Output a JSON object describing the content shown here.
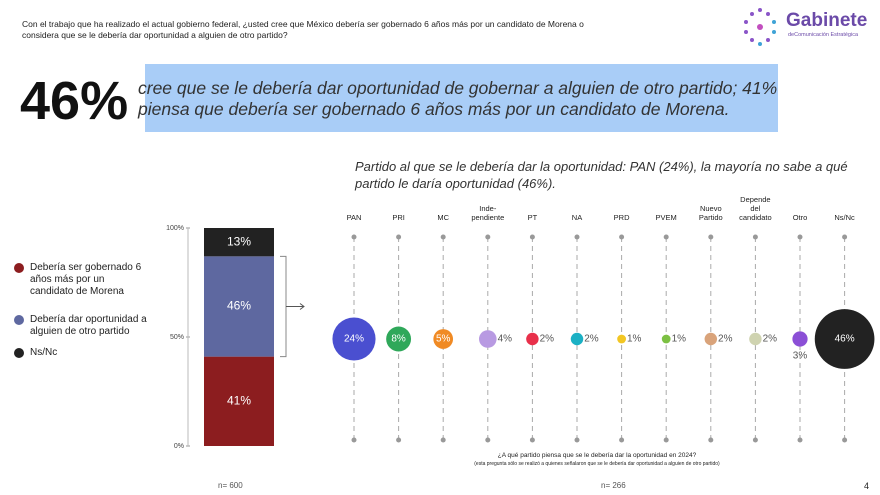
{
  "header": {
    "question": "Con el trabajo que ha realizado el actual gobierno federal, ¿usted cree que México debería ser gobernado 6 años más por un candidato de Morena o considera que se le debería dar oportunidad a alguien de otro partido?",
    "logo_name": "Gabinete",
    "logo_sub": "deComunicación Estratégica"
  },
  "headline": {
    "figure": "46%",
    "text": "cree que se le debería dar oportunidad de gobernar a alguien de otro partido; 41% piensa que debería ser gobernado 6 años más por un candidato de Morena."
  },
  "chart_data": [
    {
      "type": "stacked_bar",
      "series": [
        {
          "name": "Debería ser gobernado 6 años más por un candidato de Morena",
          "color": "#8c1d1f",
          "values": [
            41
          ],
          "value_labels": [
            "41%"
          ]
        },
        {
          "name": "Debería dar oportunidad a alguien de otro partido",
          "color": "#5e68a0",
          "values": [
            46
          ],
          "value_labels": [
            "46%"
          ]
        },
        {
          "name": "Ns/Nc",
          "color": "#222222",
          "values": [
            13
          ],
          "value_labels": [
            "13%"
          ]
        }
      ],
      "ylim": [
        0,
        100
      ],
      "yticks": [
        {
          "value": 0,
          "label": "0%"
        },
        {
          "value": 50,
          "label": "50%"
        },
        {
          "value": 100,
          "label": "100%"
        }
      ],
      "note": "n= 600"
    },
    {
      "type": "bubble",
      "title": "Partido al que se le debería dar la oportunidad: PAN (24%), la mayoría no sabe a qué partido le daría oportunidad (46%).",
      "categories": [
        "PAN",
        "PRI",
        "MC",
        "Inde-\npendiente",
        "PT",
        "NA",
        "PRD",
        "PVEM",
        "Nuevo\nPartido",
        "Depende\ndel\ncandidato",
        "Otro",
        "Ns/Nc"
      ],
      "values": [
        24,
        8,
        5,
        4,
        2,
        2,
        1,
        1,
        2,
        2,
        3,
        46
      ],
      "value_labels": [
        "24%",
        "8%",
        "5%",
        "4%",
        "2%",
        "2%",
        "1%",
        "1%",
        "2%",
        "2%",
        "3%",
        "46%"
      ],
      "colors": [
        "#4a4fd0",
        "#2fa85a",
        "#f08a24",
        "#b89ae2",
        "#e8304a",
        "#1bb0c4",
        "#f2c623",
        "#7cc043",
        "#d9a37a",
        "#cfd3b0",
        "#8b4fd6",
        "#222222"
      ],
      "note": "¿A qué partido piensa que se le debería dar la oportunidad en 2024?",
      "note2": "(esta pregunta sólo se realizó a quienes señalaron que se le debería dar oportunidad a alguien de otro partido)",
      "sample": "n= 266"
    }
  ],
  "page_number": "4"
}
